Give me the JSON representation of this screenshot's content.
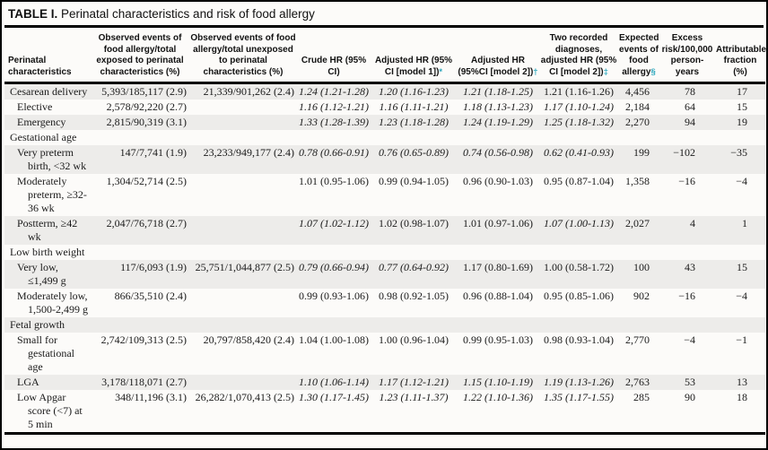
{
  "colors": {
    "footnote_marker": "#2aa7bd",
    "row_shading": "#edecea",
    "rule": "#000000"
  },
  "title": {
    "prefix": "TABLE I.",
    "text": " Perinatal characteristics and risk of food allergy"
  },
  "table": {
    "columns": [
      {
        "label": "Perinatal characteristics"
      },
      {
        "label": "Observed events of food allergy/total exposed to perinatal characteristics (%)"
      },
      {
        "label": "Observed events of food allergy/total unexposed to perinatal characteristics (%)"
      },
      {
        "label": "Crude HR (95% CI)"
      },
      {
        "label": "Adjusted HR (95% CI [model 1])",
        "marker": "*"
      },
      {
        "label": "Adjusted HR (95%CI [model 2])",
        "marker": "†"
      },
      {
        "label": "Two recorded diagnoses, adjusted HR (95% CI [model 2])",
        "marker": "‡"
      },
      {
        "label": "Expected events of food allergy",
        "marker": "§"
      },
      {
        "label": "Excess risk/100,000 person-years"
      },
      {
        "label": "Attributable fraction (%)"
      }
    ],
    "rows": [
      {
        "label": "Cesarean delivery",
        "indent": 0,
        "section": false,
        "shaded": true,
        "exposed": "5,393/185,117 (2.9)",
        "unexposed": "21,339/901,262 (2.4)",
        "crude": {
          "text": "1.24 (1.21-1.28)",
          "italic": true
        },
        "adj1": {
          "text": "1.20 (1.16-1.23)",
          "italic": true
        },
        "adj2": {
          "text": "1.21 (1.18-1.25)",
          "italic": true
        },
        "two_rec": {
          "text": "1.21 (1.16-1.26)",
          "italic": false
        },
        "expected": "4,456",
        "excess": "78",
        "attributable": "17"
      },
      {
        "label": "Elective",
        "indent": 1,
        "section": false,
        "shaded": false,
        "exposed": "2,578/92,220 (2.7)",
        "unexposed": "",
        "crude": {
          "text": "1.16 (1.12-1.21)",
          "italic": true
        },
        "adj1": {
          "text": "1.16 (1.11-1.21)",
          "italic": true
        },
        "adj2": {
          "text": "1.18 (1.13-1.23)",
          "italic": true
        },
        "two_rec": {
          "text": "1.17 (1.10-1.24)",
          "italic": true
        },
        "expected": "2,184",
        "excess": "64",
        "attributable": "15"
      },
      {
        "label": "Emergency",
        "indent": 1,
        "section": false,
        "shaded": true,
        "exposed": "2,815/90,319 (3.1)",
        "unexposed": "",
        "crude": {
          "text": "1.33 (1.28-1.39)",
          "italic": true
        },
        "adj1": {
          "text": "1.23 (1.18-1.28)",
          "italic": true
        },
        "adj2": {
          "text": "1.24 (1.19-1.29)",
          "italic": true
        },
        "two_rec": {
          "text": "1.25 (1.18-1.32)",
          "italic": true
        },
        "expected": "2,270",
        "excess": "94",
        "attributable": "19"
      },
      {
        "label": "Gestational age",
        "indent": 0,
        "section": true,
        "shaded": false,
        "exposed": "",
        "unexposed": "",
        "crude": {
          "text": "",
          "italic": false
        },
        "adj1": {
          "text": "",
          "italic": false
        },
        "adj2": {
          "text": "",
          "italic": false
        },
        "two_rec": {
          "text": "",
          "italic": false
        },
        "expected": "",
        "excess": "",
        "attributable": ""
      },
      {
        "label": "Very preterm birth, <32 wk",
        "indent": 1,
        "section": false,
        "shaded": true,
        "exposed": "147/7,741 (1.9)",
        "unexposed": "23,233/949,177 (2.4)",
        "crude": {
          "text": "0.78 (0.66-0.91)",
          "italic": true
        },
        "adj1": {
          "text": "0.76 (0.65-0.89)",
          "italic": true
        },
        "adj2": {
          "text": "0.74 (0.56-0.98)",
          "italic": true
        },
        "two_rec": {
          "text": "0.62 (0.41-0.93)",
          "italic": true
        },
        "expected": "199",
        "excess": "−102",
        "attributable": "−35"
      },
      {
        "label": "Moderately preterm, ≥32-36 wk",
        "indent": 1,
        "section": false,
        "shaded": false,
        "exposed": "1,304/52,714 (2.5)",
        "unexposed": "",
        "crude": {
          "text": "1.01 (0.95-1.06)",
          "italic": false
        },
        "adj1": {
          "text": "0.99 (0.94-1.05)",
          "italic": false
        },
        "adj2": {
          "text": "0.96 (0.90-1.03)",
          "italic": false
        },
        "two_rec": {
          "text": "0.95 (0.87-1.04)",
          "italic": false
        },
        "expected": "1,358",
        "excess": "−16",
        "attributable": "−4"
      },
      {
        "label": "Postterm, ≥42 wk",
        "indent": 1,
        "section": false,
        "shaded": true,
        "exposed": "2,047/76,718 (2.7)",
        "unexposed": "",
        "crude": {
          "text": "1.07 (1.02-1.12)",
          "italic": true
        },
        "adj1": {
          "text": "1.02 (0.98-1.07)",
          "italic": false
        },
        "adj2": {
          "text": "1.01 (0.97-1.06)",
          "italic": false
        },
        "two_rec": {
          "text": "1.07 (1.00-1.13)",
          "italic": true
        },
        "expected": "2,027",
        "excess": "4",
        "attributable": "1"
      },
      {
        "label": "Low birth weight",
        "indent": 0,
        "section": true,
        "shaded": false,
        "exposed": "",
        "unexposed": "",
        "crude": {
          "text": "",
          "italic": false
        },
        "adj1": {
          "text": "",
          "italic": false
        },
        "adj2": {
          "text": "",
          "italic": false
        },
        "two_rec": {
          "text": "",
          "italic": false
        },
        "expected": "",
        "excess": "",
        "attributable": ""
      },
      {
        "label": "Very low, ≤1,499 g",
        "indent": 1,
        "section": false,
        "shaded": true,
        "exposed": "117/6,093 (1.9)",
        "unexposed": "25,751/1,044,877 (2.5)",
        "crude": {
          "text": "0.79 (0.66-0.94)",
          "italic": true
        },
        "adj1": {
          "text": "0.77 (0.64-0.92)",
          "italic": true
        },
        "adj2": {
          "text": "1.17 (0.80-1.69)",
          "italic": false
        },
        "two_rec": {
          "text": "1.00 (0.58-1.72)",
          "italic": false
        },
        "expected": "100",
        "excess": "43",
        "attributable": "15"
      },
      {
        "label": "Moderately low, 1,500-2,499 g",
        "indent": 1,
        "section": false,
        "shaded": false,
        "exposed": "866/35,510 (2.4)",
        "unexposed": "",
        "crude": {
          "text": "0.99 (0.93-1.06)",
          "italic": false
        },
        "adj1": {
          "text": "0.98 (0.92-1.05)",
          "italic": false
        },
        "adj2": {
          "text": "0.96 (0.88-1.04)",
          "italic": false
        },
        "two_rec": {
          "text": "0.95 (0.85-1.06)",
          "italic": false
        },
        "expected": "902",
        "excess": "−16",
        "attributable": "−4"
      },
      {
        "label": "Fetal growth",
        "indent": 0,
        "section": true,
        "shaded": true,
        "exposed": "",
        "unexposed": "",
        "crude": {
          "text": "",
          "italic": false
        },
        "adj1": {
          "text": "",
          "italic": false
        },
        "adj2": {
          "text": "",
          "italic": false
        },
        "two_rec": {
          "text": "",
          "italic": false
        },
        "expected": "",
        "excess": "",
        "attributable": ""
      },
      {
        "label": "Small for gestational age",
        "indent": 1,
        "section": false,
        "shaded": false,
        "exposed": "2,742/109,313 (2.5)",
        "unexposed": "20,797/858,420 (2.4)",
        "crude": {
          "text": "1.04 (1.00-1.08)",
          "italic": false
        },
        "adj1": {
          "text": "1.00 (0.96-1.04)",
          "italic": false
        },
        "adj2": {
          "text": "0.99 (0.95-1.03)",
          "italic": false
        },
        "two_rec": {
          "text": "0.98 (0.93-1.04)",
          "italic": false
        },
        "expected": "2,770",
        "excess": "−4",
        "attributable": "−1"
      },
      {
        "label": "LGA",
        "indent": 1,
        "section": false,
        "shaded": true,
        "exposed": "3,178/118,071 (2.7)",
        "unexposed": "",
        "crude": {
          "text": "1.10 (1.06-1.14)",
          "italic": true
        },
        "adj1": {
          "text": "1.17 (1.12-1.21)",
          "italic": true
        },
        "adj2": {
          "text": "1.15 (1.10-1.19)",
          "italic": true
        },
        "two_rec": {
          "text": "1.19 (1.13-1.26)",
          "italic": true
        },
        "expected": "2,763",
        "excess": "53",
        "attributable": "13"
      },
      {
        "label": "Low Apgar score (<7) at 5 min",
        "indent": 1,
        "section": false,
        "shaded": false,
        "exposed": "348/11,196 (3.1)",
        "unexposed": "26,282/1,070,413 (2.5)",
        "crude": {
          "text": "1.30 (1.17-1.45)",
          "italic": true
        },
        "adj1": {
          "text": "1.23 (1.11-1.37)",
          "italic": true
        },
        "adj2": {
          "text": "1.22 (1.10-1.36)",
          "italic": true
        },
        "two_rec": {
          "text": "1.35 (1.17-1.55)",
          "italic": true
        },
        "expected": "285",
        "excess": "90",
        "attributable": "18"
      }
    ]
  }
}
